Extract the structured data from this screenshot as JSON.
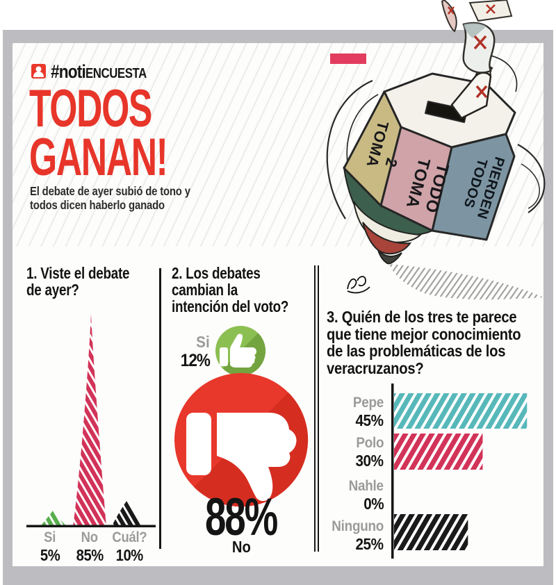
{
  "header": {
    "brand_hash_part": "#noti",
    "brand_caps_part": "ENCUESTA",
    "title_line1": "TODOS",
    "title_line2": "GANAN!",
    "subtitle_line1": "El debate de ayer subió de tono y",
    "subtitle_line2": "todos dicen haberlo ganado"
  },
  "illustration": {
    "description": "spinning-top ballot box cartoon with ballots marked X",
    "faces": [
      [
        "TOMA",
        "2"
      ],
      [
        "TOMA",
        "TODO"
      ],
      [
        "TODOS",
        "PIERDEN"
      ]
    ]
  },
  "questions": [
    {
      "title_lines": [
        "1. Viste el debate",
        "de ayer?"
      ]
    },
    {
      "title_lines": [
        "2. Los debates",
        "cambian la",
        "intención del voto?"
      ]
    },
    {
      "title_lines": [
        "3. Quién de los tres te parece",
        "que tiene mejor conocimiento",
        "de las problemáticas de los",
        "veracruzanos?"
      ]
    }
  ],
  "chart_data": [
    {
      "type": "area",
      "style": "striped triangular peaks",
      "title": "1. Viste el debate de ayer?",
      "categories": [
        "Si",
        "No",
        "Cuál?"
      ],
      "values": [
        5,
        85,
        10
      ],
      "value_labels": [
        "5%",
        "85%",
        "10%"
      ],
      "colors": [
        "#58ae4d",
        "#d23358",
        "#1a1a1a"
      ],
      "unit": "%"
    },
    {
      "type": "pie",
      "style": "thumb icons with percentages",
      "title": "2. Los debates cambian la intención del voto?",
      "categories": [
        "Si",
        "No"
      ],
      "values": [
        12,
        88
      ],
      "value_labels": [
        "12%",
        "88%"
      ],
      "icons": [
        "thumbs-up",
        "thumbs-down"
      ],
      "colors": [
        "#8cbf52",
        "#e8372b"
      ]
    },
    {
      "type": "bar",
      "orientation": "horizontal",
      "style": "striped bars",
      "title": "3. Quién de los tres te parece que tiene mejor conocimiento de las problemáticas de los veracruzanos?",
      "categories": [
        "Pepe",
        "Polo",
        "Nahle",
        "Ninguno"
      ],
      "values": [
        45,
        30,
        0,
        25
      ],
      "value_labels": [
        "45%",
        "30%",
        "0%",
        "25%"
      ],
      "colors": [
        "#57b8ba",
        "#d23358",
        "#1a1a1a",
        "#1a1a1a"
      ],
      "xlim": [
        0,
        50
      ]
    }
  ],
  "colors": {
    "accent_red": "#e8392b",
    "crimson": "#d23358",
    "teal": "#57b8ba",
    "green": "#8cbf52",
    "frame_gray": "#bdbcc1",
    "label_gray": "#9b9b9b",
    "badge_pink": "#e23c5e"
  }
}
